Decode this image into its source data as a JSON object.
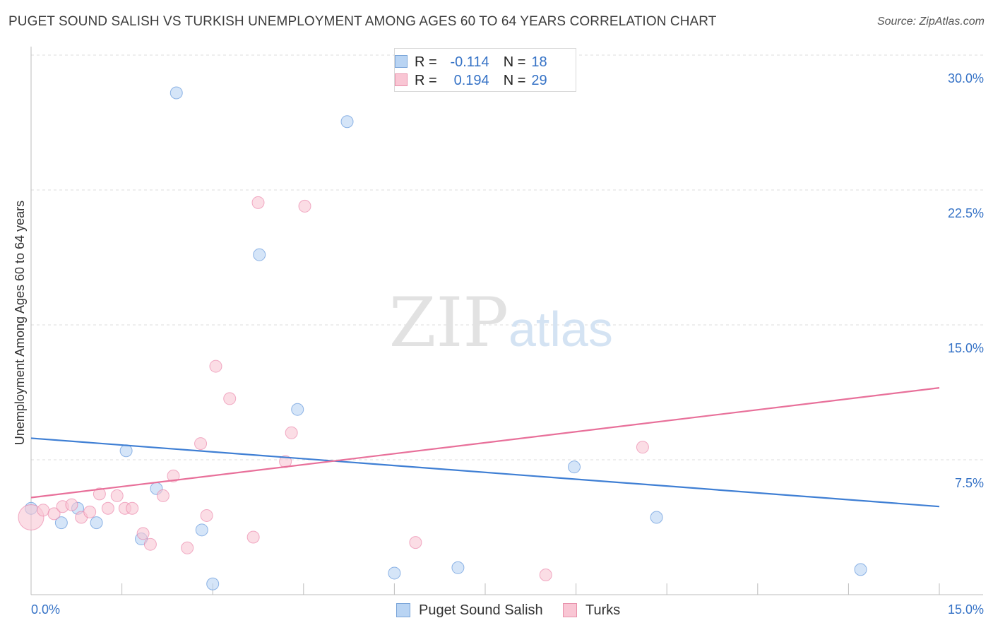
{
  "title": "PUGET SOUND SALISH VS TURKISH UNEMPLOYMENT AMONG AGES 60 TO 64 YEARS CORRELATION CHART",
  "source": "Source: ZipAtlas.com",
  "watermark": {
    "zip": "ZIP",
    "atlas": "atlas"
  },
  "legend_top": [
    {
      "r_label": "R =",
      "r_value": "-0.114",
      "n_label": "N =",
      "n_value": "18",
      "color": "#b9d4f3"
    },
    {
      "r_label": "R =",
      "r_value": "0.194",
      "n_label": "N =",
      "n_value": "29",
      "color": "#f9c6d4"
    }
  ],
  "legend_bottom": [
    {
      "label": "Puget Sound Salish",
      "color": "#b9d4f3"
    },
    {
      "label": "Turks",
      "color": "#f9c6d4"
    }
  ],
  "chart_data": {
    "type": "scatter",
    "title": "PUGET SOUND SALISH VS TURKISH UNEMPLOYMENT AMONG AGES 60 TO 64 YEARS CORRELATION CHART",
    "xlabel": "",
    "ylabel": "Unemployment Among Ages 60 to 64 years",
    "xlim": [
      0,
      15
    ],
    "ylim": [
      0,
      30
    ],
    "x_tick_labels": [
      "0.0%",
      "15.0%"
    ],
    "y_ticks": [
      7.5,
      15,
      22.5,
      30
    ],
    "y_tick_labels": [
      "7.5%",
      "15.0%",
      "22.5%",
      "30.0%"
    ],
    "grid": true,
    "series": [
      {
        "name": "Puget Sound Salish",
        "color": "#3f7fd4",
        "fill": "#b9d4f3",
        "points": [
          {
            "x": 0.0,
            "y": 4.8
          },
          {
            "x": 0.5,
            "y": 4.0
          },
          {
            "x": 0.77,
            "y": 4.8
          },
          {
            "x": 1.08,
            "y": 4.0
          },
          {
            "x": 1.57,
            "y": 8.0
          },
          {
            "x": 1.82,
            "y": 3.1
          },
          {
            "x": 2.07,
            "y": 5.9
          },
          {
            "x": 2.4,
            "y": 27.9
          },
          {
            "x": 2.82,
            "y": 3.6
          },
          {
            "x": 3.0,
            "y": 0.6
          },
          {
            "x": 3.77,
            "y": 18.9
          },
          {
            "x": 4.4,
            "y": 10.3
          },
          {
            "x": 5.22,
            "y": 26.3
          },
          {
            "x": 6.0,
            "y": 1.2
          },
          {
            "x": 7.05,
            "y": 1.5
          },
          {
            "x": 8.97,
            "y": 7.1
          },
          {
            "x": 10.33,
            "y": 4.3
          },
          {
            "x": 13.7,
            "y": 1.4
          }
        ],
        "trend": {
          "x": [
            0,
            15
          ],
          "y": [
            8.7,
            4.9
          ]
        }
      },
      {
        "name": "Turks",
        "color": "#e8709a",
        "fill": "#f9c6d4",
        "points": [
          {
            "x": 0.0,
            "y": 4.3,
            "size": "large"
          },
          {
            "x": 0.2,
            "y": 4.7
          },
          {
            "x": 0.38,
            "y": 4.5
          },
          {
            "x": 0.52,
            "y": 4.9
          },
          {
            "x": 0.67,
            "y": 5.0
          },
          {
            "x": 0.83,
            "y": 4.3
          },
          {
            "x": 0.97,
            "y": 4.6
          },
          {
            "x": 1.13,
            "y": 5.6
          },
          {
            "x": 1.27,
            "y": 4.8
          },
          {
            "x": 1.42,
            "y": 5.5
          },
          {
            "x": 1.55,
            "y": 4.8
          },
          {
            "x": 1.67,
            "y": 4.8
          },
          {
            "x": 1.85,
            "y": 3.4
          },
          {
            "x": 1.97,
            "y": 2.8
          },
          {
            "x": 2.18,
            "y": 5.5
          },
          {
            "x": 2.35,
            "y": 6.6
          },
          {
            "x": 2.58,
            "y": 2.6
          },
          {
            "x": 2.8,
            "y": 8.4
          },
          {
            "x": 2.9,
            "y": 4.4
          },
          {
            "x": 3.05,
            "y": 12.7
          },
          {
            "x": 3.28,
            "y": 10.9
          },
          {
            "x": 3.67,
            "y": 3.2
          },
          {
            "x": 3.75,
            "y": 21.8
          },
          {
            "x": 4.2,
            "y": 7.4
          },
          {
            "x": 4.3,
            "y": 9.0
          },
          {
            "x": 4.52,
            "y": 21.6
          },
          {
            "x": 6.35,
            "y": 2.9
          },
          {
            "x": 8.5,
            "y": 1.1
          },
          {
            "x": 10.1,
            "y": 8.2
          }
        ],
        "trend": {
          "x": [
            0,
            15
          ],
          "y": [
            5.4,
            11.5
          ]
        }
      }
    ]
  }
}
